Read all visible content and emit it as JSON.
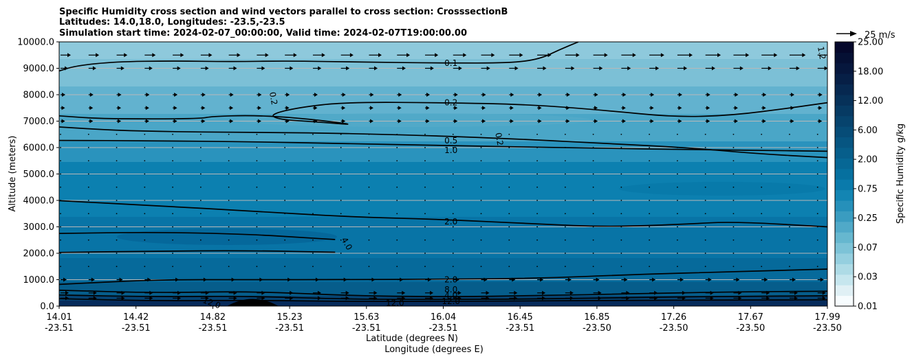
{
  "chart_data": {
    "type": "contour",
    "title_lines": [
      "Specific Humidity cross section and wind vectors parallel to cross section: CrosssectionB",
      "Latitudes: 14.0,18.0, Longitudes: -23.5,-23.5",
      "Simulation start time: 2024-02-07_00:00:00, Valid time: 2024-02-07T19:00:00.00"
    ],
    "xlabel_lat": "Latitude (degrees N)",
    "xlabel_lon": "Longitude (degrees E)",
    "ylabel": "Altitude (meters)",
    "ylim": [
      0,
      10000
    ],
    "y_ticks": [
      "0.0",
      "1000.0",
      "2000.0",
      "3000.0",
      "4000.0",
      "5000.0",
      "6000.0",
      "7000.0",
      "8000.0",
      "9000.0",
      "10000.0"
    ],
    "x_ticks": [
      {
        "lat": "14.01",
        "lon": "-23.51"
      },
      {
        "lat": "14.42",
        "lon": "-23.51"
      },
      {
        "lat": "14.82",
        "lon": "-23.51"
      },
      {
        "lat": "15.23",
        "lon": "-23.51"
      },
      {
        "lat": "15.63",
        "lon": "-23.51"
      },
      {
        "lat": "16.04",
        "lon": "-23.51"
      },
      {
        "lat": "16.45",
        "lon": "-23.51"
      },
      {
        "lat": "16.85",
        "lon": "-23.50"
      },
      {
        "lat": "17.26",
        "lon": "-23.50"
      },
      {
        "lat": "17.67",
        "lon": "-23.50"
      },
      {
        "lat": "17.99",
        "lon": "-23.50"
      }
    ],
    "grid": "horizontal",
    "colorbar": {
      "label": "Specific Humidity g/kg",
      "tick_labels": [
        "0.01",
        "0.03",
        "0.07",
        "0.25",
        "0.75",
        "2.00",
        "6.00",
        "12.00",
        "18.00",
        "25.00"
      ],
      "colors": [
        "#f7fcfe",
        "#e0f0f5",
        "#c6e6ee",
        "#aedbe6",
        "#95cfdf",
        "#7dc3d7",
        "#66b7cf",
        "#50a9c8",
        "#3a9cc0",
        "#2690ba",
        "#1385b3",
        "#0a7aab",
        "#06709f",
        "#066795",
        "#065e8b",
        "#065581",
        "#064c77",
        "#06436d",
        "#063a63",
        "#063159",
        "#062850",
        "#061f46",
        "#06173d",
        "#051034",
        "#05082b"
      ]
    },
    "quiver_key": {
      "label": "25 m/s"
    },
    "contours": [
      {
        "level": "0.1",
        "points": [
          [
            14.01,
            8900
          ],
          [
            14.1,
            9100
          ],
          [
            14.3,
            9250
          ],
          [
            14.6,
            9280
          ],
          [
            14.9,
            9250
          ],
          [
            15.2,
            9280
          ],
          [
            15.6,
            9230
          ],
          [
            16.0,
            9200
          ],
          [
            16.35,
            9200
          ],
          [
            16.5,
            9350
          ],
          [
            16.6,
            9700
          ],
          [
            16.7,
            10000
          ]
        ]
      },
      {
        "level": "0.2",
        "points": [
          [
            14.01,
            7200
          ],
          [
            14.2,
            7100
          ],
          [
            14.5,
            7080
          ],
          [
            14.75,
            7100
          ],
          [
            14.8,
            7180
          ],
          [
            15.0,
            7220
          ],
          [
            15.2,
            7150
          ],
          [
            15.4,
            7000
          ],
          [
            15.55,
            6850
          ],
          [
            15.33,
            6980
          ],
          [
            15.15,
            7060
          ],
          [
            15.1,
            7250
          ],
          [
            15.25,
            7520
          ],
          [
            15.5,
            7720
          ],
          [
            16.0,
            7700
          ],
          [
            16.45,
            7630
          ],
          [
            16.85,
            7400
          ],
          [
            17.2,
            7150
          ],
          [
            17.5,
            7220
          ],
          [
            17.8,
            7500
          ],
          [
            17.99,
            7700
          ]
        ]
      },
      {
        "level": "0.5",
        "points": [
          [
            14.01,
            6780
          ],
          [
            14.3,
            6650
          ],
          [
            14.6,
            6600
          ],
          [
            14.9,
            6580
          ],
          [
            15.3,
            6560
          ],
          [
            15.7,
            6500
          ],
          [
            16.05,
            6420
          ],
          [
            16.45,
            6300
          ],
          [
            16.85,
            6150
          ],
          [
            17.26,
            6000
          ],
          [
            17.6,
            5780
          ],
          [
            17.99,
            5620
          ]
        ]
      },
      {
        "level": "1.0",
        "points": [
          [
            14.01,
            6270
          ],
          [
            14.5,
            6260
          ],
          [
            15.0,
            6220
          ],
          [
            15.5,
            6150
          ],
          [
            16.0,
            6080
          ],
          [
            16.45,
            6020
          ],
          [
            16.85,
            5970
          ],
          [
            17.3,
            5920
          ],
          [
            17.6,
            5900
          ],
          [
            17.99,
            5860
          ]
        ]
      },
      {
        "level": "2.0",
        "points": [
          [
            14.01,
            3990
          ],
          [
            14.5,
            3800
          ],
          [
            15.0,
            3600
          ],
          [
            15.5,
            3380
          ],
          [
            16.0,
            3280
          ],
          [
            16.5,
            3100
          ],
          [
            16.85,
            3000
          ],
          [
            17.26,
            3100
          ],
          [
            17.5,
            3200
          ],
          [
            17.99,
            3000
          ]
        ]
      },
      {
        "level": "4.0",
        "points": [
          [
            14.01,
            2750
          ],
          [
            14.5,
            2800
          ],
          [
            15.0,
            2720
          ],
          [
            15.3,
            2580
          ],
          [
            15.44,
            2520
          ]
        ]
      },
      {
        "level": "4.0",
        "points": [
          [
            14.01,
            2030
          ],
          [
            14.5,
            2080
          ],
          [
            15.0,
            2100
          ],
          [
            15.44,
            2040
          ]
        ]
      },
      {
        "level": "2.0",
        "points": [
          [
            14.01,
            820
          ],
          [
            14.5,
            1000
          ],
          [
            15.0,
            1000
          ],
          [
            15.5,
            1000
          ],
          [
            16.0,
            1020
          ],
          [
            16.5,
            1050
          ],
          [
            17.0,
            1200
          ],
          [
            17.5,
            1300
          ],
          [
            17.99,
            1400
          ]
        ]
      },
      {
        "level": "8.0",
        "points": [
          [
            14.01,
            600
          ],
          [
            14.5,
            500
          ],
          [
            15.0,
            560
          ],
          [
            15.5,
            400
          ],
          [
            16.0,
            350
          ],
          [
            16.5,
            400
          ],
          [
            17.0,
            470
          ],
          [
            17.5,
            540
          ],
          [
            17.99,
            560
          ]
        ]
      },
      {
        "level": "10.0",
        "points": [
          [
            14.01,
            420
          ],
          [
            14.5,
            350
          ],
          [
            15.0,
            380
          ],
          [
            15.5,
            260
          ],
          [
            16.0,
            250
          ],
          [
            16.5,
            270
          ],
          [
            17.0,
            330
          ],
          [
            17.5,
            370
          ],
          [
            17.99,
            390
          ]
        ]
      },
      {
        "level": "12.0",
        "points": [
          [
            14.01,
            280
          ],
          [
            14.5,
            200
          ],
          [
            15.0,
            220
          ],
          [
            15.5,
            180
          ],
          [
            16.0,
            180
          ],
          [
            16.5,
            200
          ],
          [
            17.0,
            220
          ],
          [
            17.5,
            230
          ],
          [
            17.99,
            240
          ]
        ]
      }
    ],
    "contour_labels": [
      {
        "text": "0.1",
        "x": 16.04,
        "y": 9200,
        "rot": 0
      },
      {
        "text": "0.2",
        "x": 16.04,
        "y": 7700,
        "rot": 0
      },
      {
        "text": "0.2",
        "x": 15.12,
        "y": 7860,
        "rot": 80
      },
      {
        "text": "0.2",
        "x": 16.29,
        "y": 6320,
        "rot": 80
      },
      {
        "text": "0.5",
        "x": 16.04,
        "y": 6260,
        "rot": 0
      },
      {
        "text": "1.0",
        "x": 16.04,
        "y": 5900,
        "rot": 0
      },
      {
        "text": "2.0",
        "x": 16.04,
        "y": 3200,
        "rot": 0
      },
      {
        "text": "4.0",
        "x": 15.5,
        "y": 2360,
        "rot": 60
      },
      {
        "text": "2.0",
        "x": 16.04,
        "y": 1000,
        "rot": 0
      },
      {
        "text": "8.0",
        "x": 16.04,
        "y": 620,
        "rot": 0
      },
      {
        "text": "4.0",
        "x": 16.04,
        "y": 400,
        "rot": 0
      },
      {
        "text": "12.0",
        "x": 16.04,
        "y": 180,
        "rot": 0
      },
      {
        "text": "12.0",
        "x": 14.8,
        "y": 120,
        "rot": 20
      },
      {
        "text": "12.0",
        "x": 15.75,
        "y": 120,
        "rot": 0
      },
      {
        "text": "1.2",
        "x": 17.96,
        "y": 9580,
        "rot": 80
      }
    ]
  }
}
